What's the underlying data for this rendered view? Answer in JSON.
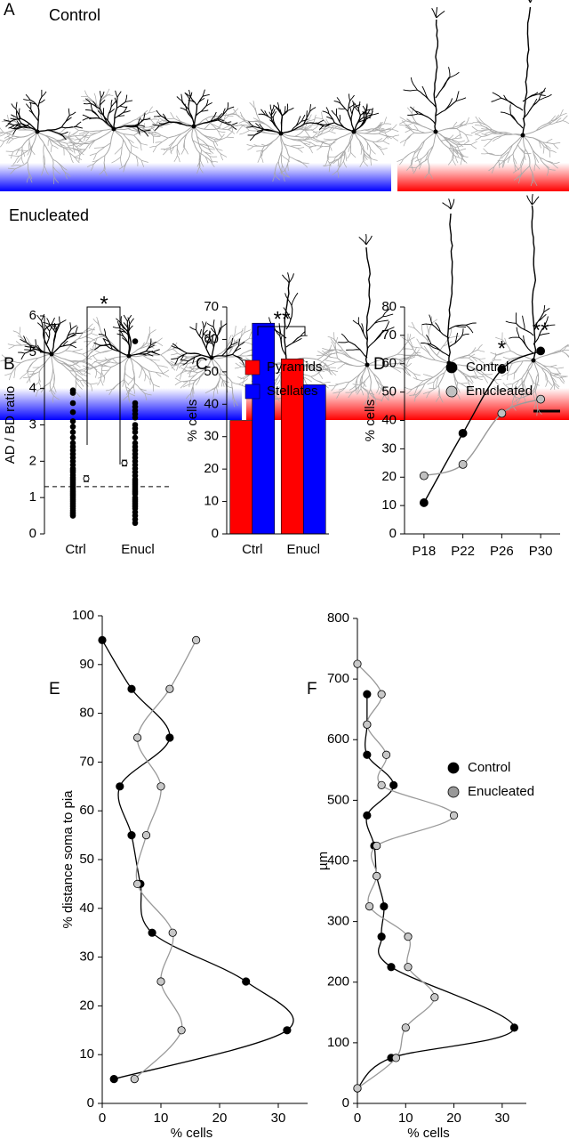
{
  "panel_a": {
    "label": "A",
    "rows": [
      {
        "title": "Control"
      },
      {
        "title": "Enucleated"
      }
    ]
  },
  "chart_data": [
    {
      "type": "strip",
      "label": "B",
      "ylabel": "AD / BD  ratio",
      "categories": [
        "Ctrl",
        "Enucl"
      ],
      "ylim": [
        0,
        6
      ],
      "yticks": [
        0,
        1,
        2,
        3,
        4,
        5,
        6
      ],
      "color": "#000000",
      "points": [
        [
          3.95,
          3.88,
          3.6,
          3.35,
          3.1,
          2.95,
          2.8,
          2.65,
          2.5,
          2.4,
          2.3,
          2.2,
          2.1,
          2.0,
          1.9,
          1.8,
          1.75,
          1.7,
          1.62,
          1.55,
          1.5,
          1.45,
          1.4,
          1.35,
          1.3,
          1.25,
          1.2,
          1.15,
          1.1,
          1.05,
          1.0,
          0.95,
          0.9,
          0.85,
          0.8,
          0.75,
          0.7,
          0.65,
          0.6,
          0.55,
          0.5
        ],
        [
          5.3,
          3.6,
          3.5,
          3.4,
          3.3,
          3.2,
          3.0,
          2.9,
          2.8,
          2.65,
          2.5,
          2.4,
          2.3,
          2.2,
          2.1,
          2.0,
          1.9,
          1.8,
          1.7,
          1.6,
          1.5,
          1.45,
          1.4,
          1.35,
          1.3,
          1.25,
          1.2,
          1.15,
          1.1,
          1.0,
          0.95,
          0.9,
          0.85,
          0.8,
          0.75,
          0.7,
          0.6,
          0.5,
          0.4,
          0.3
        ]
      ],
      "means": [
        1.52,
        1.95
      ],
      "errors": [
        0.08,
        0.08
      ],
      "reference_line": 1.3,
      "annotation": "*"
    },
    {
      "type": "bar",
      "label": "C",
      "ylabel": "% cells",
      "categories": [
        "Ctrl",
        "Enucl"
      ],
      "series": [
        {
          "name": "Pyramids",
          "color": "#ff0000",
          "values": [
            35,
            54
          ]
        },
        {
          "name": "Stellates",
          "color": "#0000ff",
          "values": [
            65,
            46
          ]
        }
      ],
      "ylim": [
        0,
        70
      ],
      "yticks": [
        0,
        10,
        20,
        30,
        40,
        50,
        60,
        70
      ],
      "annotation": "**"
    },
    {
      "type": "line",
      "label": "D",
      "ylabel": "% cells",
      "categories": [
        "P18",
        "P22",
        "P26",
        "P30"
      ],
      "series": [
        {
          "name": "Control",
          "color": "#000000",
          "values": [
            11,
            35.5,
            58,
            64.5
          ]
        },
        {
          "name": "Enucleated",
          "color": "#c0c0c0",
          "values": [
            20.5,
            24.5,
            42.5,
            47.5
          ]
        }
      ],
      "ylim": [
        0,
        80
      ],
      "yticks": [
        0,
        10,
        20,
        30,
        40,
        50,
        60,
        70,
        80
      ],
      "annotations": [
        {
          "x": "P26",
          "text": "*"
        },
        {
          "x": "P30",
          "text": "**"
        }
      ]
    },
    {
      "type": "profile",
      "label": "E",
      "xlabel": "% cells",
      "ylabel": "% distance soma to pia",
      "xlim": [
        0,
        35
      ],
      "xticks": [
        0,
        10,
        20,
        30
      ],
      "ylim": [
        0,
        100
      ],
      "yticks": [
        0,
        10,
        20,
        30,
        40,
        50,
        60,
        70,
        80,
        90,
        100
      ],
      "series": [
        {
          "color": "#000000",
          "y": [
            5,
            15,
            25,
            35,
            45,
            55,
            65,
            75,
            85,
            95
          ],
          "values": [
            2,
            31.5,
            24.5,
            8.5,
            6.5,
            5,
            3,
            11.5,
            5,
            0
          ]
        },
        {
          "color": "#999999",
          "y": [
            5,
            15,
            25,
            35,
            45,
            55,
            65,
            75,
            85,
            95
          ],
          "values": [
            5.5,
            13.5,
            10,
            12,
            6,
            7.5,
            10,
            6,
            11.5,
            16
          ]
        }
      ]
    },
    {
      "type": "profile",
      "label": "F",
      "xlabel": "% cells",
      "ylabel": "µm",
      "legend": "top-right",
      "xlim": [
        0,
        35
      ],
      "xticks": [
        0,
        10,
        20,
        30
      ],
      "ylim": [
        0,
        800
      ],
      "yticks": [
        0,
        100,
        200,
        300,
        400,
        500,
        600,
        700,
        800
      ],
      "series": [
        {
          "name": "Control",
          "color": "#000000",
          "y": [
            25,
            75,
            125,
            225,
            275,
            325,
            375,
            425,
            475,
            525,
            575,
            625,
            675
          ],
          "values": [
            0,
            7,
            32.5,
            7,
            5,
            5.5,
            4,
            3.5,
            2,
            7.5,
            2,
            2,
            2
          ]
        },
        {
          "name": "Enucleated",
          "color": "#999999",
          "y": [
            25,
            75,
            125,
            175,
            225,
            275,
            325,
            375,
            425,
            475,
            525,
            575,
            625,
            675,
            725
          ],
          "values": [
            0,
            8,
            10,
            16,
            10.5,
            10.5,
            2.5,
            4,
            4,
            20,
            5,
            6,
            2,
            5,
            0
          ]
        }
      ]
    }
  ]
}
